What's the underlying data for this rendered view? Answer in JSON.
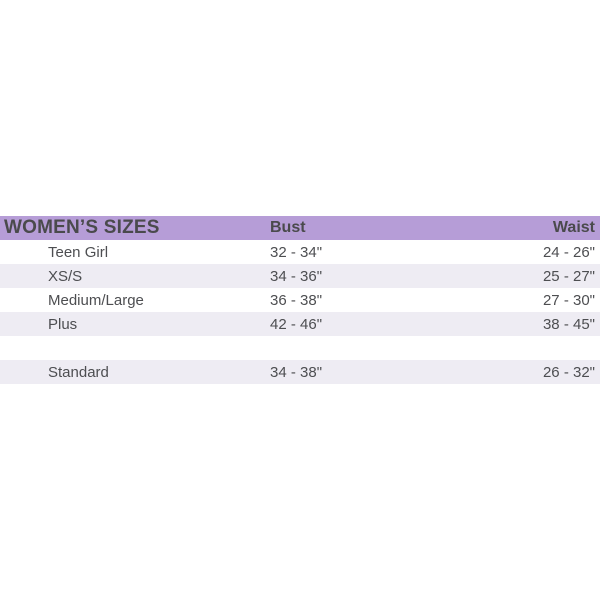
{
  "size_chart": {
    "header": {
      "title": "WOMEN’S SIZES",
      "bust": "Bust",
      "waist": "Waist"
    },
    "rows": [
      {
        "label": "Teen Girl",
        "bust": "32 - 34\"",
        "waist": "24 - 26\""
      },
      {
        "label": "XS/S",
        "bust": "34 - 36\"",
        "waist": "25 - 27\""
      },
      {
        "label": "Medium/Large",
        "bust": "36 - 38\"",
        "waist": "27 - 30\""
      },
      {
        "label": "Plus",
        "bust": "42 - 46\"",
        "waist": "38 - 45\""
      },
      {
        "label": "Standard",
        "bust": "34 - 38\"",
        "waist": "26 - 32\""
      }
    ],
    "colors": {
      "header-bg": "#b69dd7",
      "stripe-bg": "#eeecf3",
      "header-text": "#4a4a4c",
      "row-text": "#4d4e51"
    }
  }
}
